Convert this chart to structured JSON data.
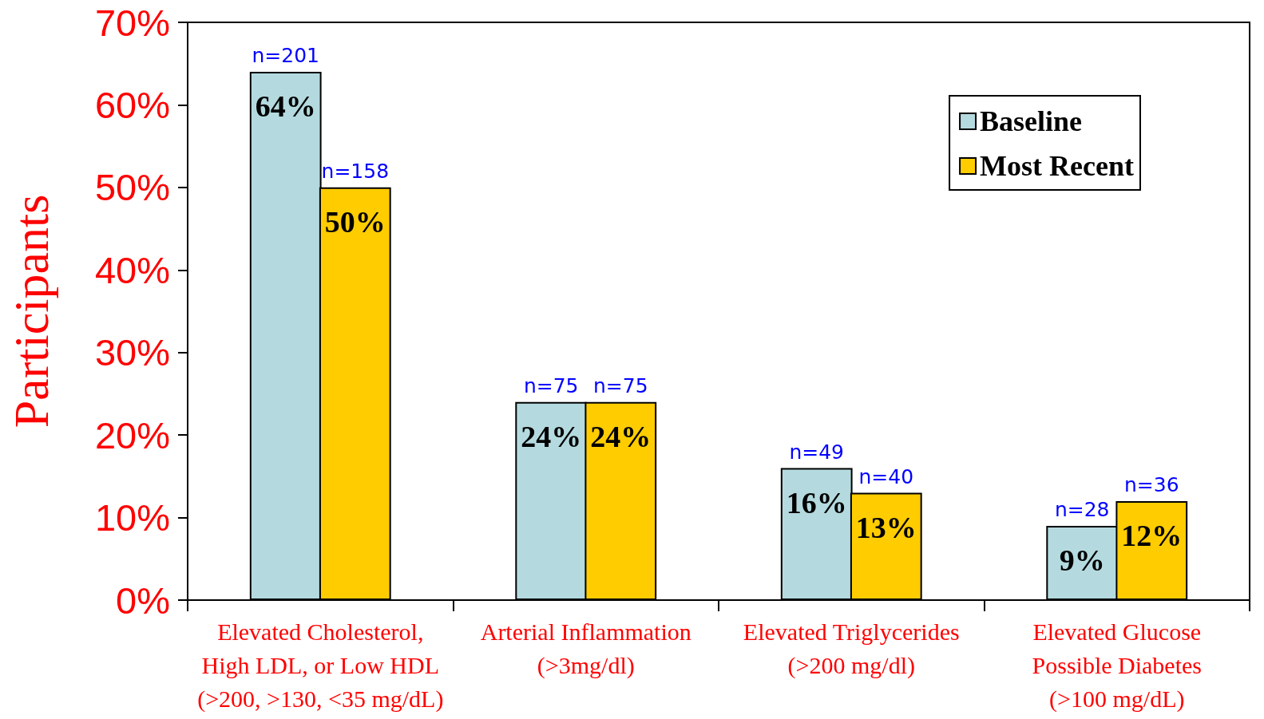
{
  "chart_data": {
    "type": "bar",
    "categories": [
      "Elevated Cholesterol,\nHigh LDL, or Low HDL\n(>200, >130, <35 mg/dL)",
      "Arterial Inflammation\n(>3mg/dl)",
      "Elevated Triglycerides\n(>200 mg/dl)",
      "Elevated Glucose\nPossible Diabetes\n(>100 mg/dL)"
    ],
    "series": [
      {
        "name": "Baseline",
        "color": "#b4dadf",
        "values": [
          64,
          24,
          16,
          9
        ],
        "value_labels": [
          "64%",
          "24%",
          "16%",
          "9%"
        ]
      },
      {
        "name": "Most Recent",
        "color": "#ffcc00",
        "values": [
          50,
          24,
          13,
          12
        ],
        "value_labels": [
          "50%",
          "24%",
          "13%",
          "12%"
        ]
      }
    ],
    "ylabel": "Participants",
    "ylim": [
      0,
      70
    ],
    "yticks": [
      {
        "value": 0,
        "label": "0%"
      },
      {
        "value": 10,
        "label": "10%"
      },
      {
        "value": 20,
        "label": "20%"
      },
      {
        "value": 30,
        "label": "30%"
      },
      {
        "value": 40,
        "label": "40%"
      },
      {
        "value": 50,
        "label": "50%"
      },
      {
        "value": 60,
        "label": "60%"
      },
      {
        "value": 70,
        "label": "70%"
      }
    ],
    "annotations": [
      {
        "text": "n=201",
        "x": "Elevated Cholesterol,\nHigh LDL, or Low HDL\n(>200, >130, <35 mg/dL)",
        "y": 64
      },
      {
        "text": "n=158",
        "x": "Elevated Cholesterol,\nHigh LDL, or Low HDL\n(>200, >130, <35 mg/dL)",
        "y": 50
      },
      {
        "text": "n=75",
        "x": "Arterial Inflammation\n(>3mg/dl)",
        "y": 24
      },
      {
        "text": "n=75",
        "x": "Arterial Inflammation\n(>3mg/dl)",
        "y": 24
      },
      {
        "text": "n=49",
        "x": "Elevated Triglycerides\n(>200 mg/dl)",
        "y": 16
      },
      {
        "text": "n=40",
        "x": "Elevated Triglycerides\n(>200 mg/dl)",
        "y": 13
      },
      {
        "text": "n=28",
        "x": "Elevated Glucose\nPossible Diabetes\n(>100 mg/dL)",
        "y": 9
      },
      {
        "text": "n=36",
        "x": "Elevated Glucose\nPossible Diabetes\n(>100 mg/dL)",
        "y": 12
      }
    ],
    "legend": "top right",
    "grid": false
  }
}
